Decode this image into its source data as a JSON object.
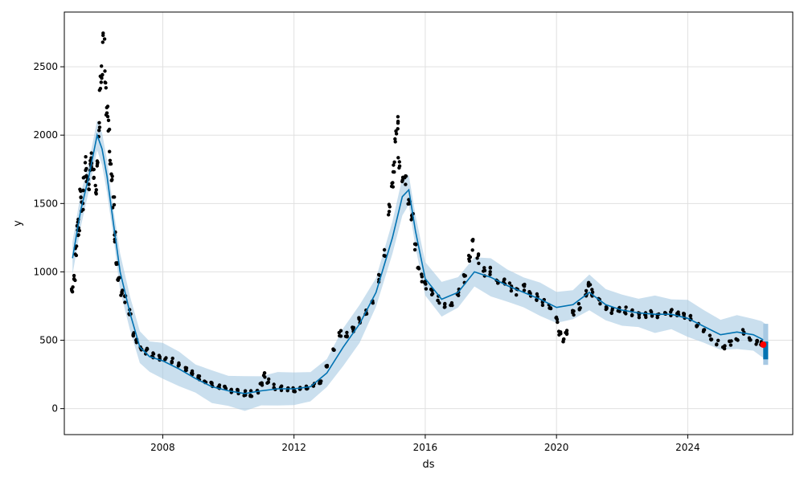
{
  "chart_data": {
    "type": "scatter",
    "xlabel": "ds",
    "ylabel": "y",
    "xlim": [
      2005.0,
      2027.2
    ],
    "ylim": [
      -190,
      2900
    ],
    "grid": true,
    "x_ticks": [
      {
        "value": 2008,
        "label": "2008"
      },
      {
        "value": 2012,
        "label": "2012"
      },
      {
        "value": 2016,
        "label": "2016"
      },
      {
        "value": 2020,
        "label": "2020"
      },
      {
        "value": 2024,
        "label": "2024"
      }
    ],
    "y_ticks": [
      {
        "value": 0,
        "label": "0"
      },
      {
        "value": 500,
        "label": "500"
      },
      {
        "value": 1000,
        "label": "1000"
      },
      {
        "value": 1500,
        "label": "1500"
      },
      {
        "value": 2000,
        "label": "2000"
      },
      {
        "value": 2500,
        "label": "2500"
      }
    ],
    "colors": {
      "observed": "#000000",
      "forecast": "#0072B2",
      "uncertainty": "#A7C9E3",
      "last_point": "#FF0000",
      "grid": "#E0E0E0"
    },
    "observed": [
      [
        2005.25,
        880
      ],
      [
        2005.3,
        950
      ],
      [
        2005.35,
        1150
      ],
      [
        2005.4,
        1350
      ],
      [
        2005.45,
        1280
      ],
      [
        2005.5,
        1550
      ],
      [
        2005.55,
        1480
      ],
      [
        2005.6,
        1650
      ],
      [
        2005.65,
        1800
      ],
      [
        2005.7,
        1720
      ],
      [
        2005.75,
        1650
      ],
      [
        2005.8,
        1760
      ],
      [
        2005.85,
        1820
      ],
      [
        2005.9,
        1700
      ],
      [
        2005.95,
        1580
      ],
      [
        2006.0,
        1750
      ],
      [
        2006.05,
        2050
      ],
      [
        2006.1,
        2350
      ],
      [
        2006.15,
        2500
      ],
      [
        2006.2,
        2700
      ],
      [
        2006.25,
        2400
      ],
      [
        2006.3,
        2200
      ],
      [
        2006.35,
        2100
      ],
      [
        2006.4,
        1850
      ],
      [
        2006.45,
        1700
      ],
      [
        2006.5,
        1500
      ],
      [
        2006.55,
        1250
      ],
      [
        2006.6,
        1050
      ],
      [
        2006.65,
        950
      ],
      [
        2006.75,
        850
      ],
      [
        2006.85,
        800
      ],
      [
        2007.0,
        700
      ],
      [
        2007.1,
        550
      ],
      [
        2007.2,
        500
      ],
      [
        2007.35,
        450
      ],
      [
        2007.5,
        420
      ],
      [
        2007.7,
        390
      ],
      [
        2007.9,
        370
      ],
      [
        2008.1,
        370
      ],
      [
        2008.3,
        350
      ],
      [
        2008.5,
        320
      ],
      [
        2008.7,
        290
      ],
      [
        2008.9,
        260
      ],
      [
        2009.1,
        230
      ],
      [
        2009.3,
        200
      ],
      [
        2009.5,
        180
      ],
      [
        2009.7,
        160
      ],
      [
        2009.9,
        150
      ],
      [
        2010.1,
        135
      ],
      [
        2010.3,
        120
      ],
      [
        2010.5,
        115
      ],
      [
        2010.7,
        110
      ],
      [
        2010.9,
        130
      ],
      [
        2011.0,
        180
      ],
      [
        2011.1,
        250
      ],
      [
        2011.2,
        200
      ],
      [
        2011.4,
        160
      ],
      [
        2011.6,
        145
      ],
      [
        2011.8,
        140
      ],
      [
        2012.0,
        140
      ],
      [
        2012.2,
        155
      ],
      [
        2012.4,
        160
      ],
      [
        2012.6,
        165
      ],
      [
        2012.8,
        200
      ],
      [
        2013.0,
        300
      ],
      [
        2013.2,
        420
      ],
      [
        2013.4,
        550
      ],
      [
        2013.6,
        540
      ],
      [
        2013.8,
        580
      ],
      [
        2014.0,
        650
      ],
      [
        2014.2,
        700
      ],
      [
        2014.4,
        800
      ],
      [
        2014.6,
        950
      ],
      [
        2014.75,
        1150
      ],
      [
        2014.9,
        1450
      ],
      [
        2015.0,
        1600
      ],
      [
        2015.05,
        1750
      ],
      [
        2015.1,
        2000
      ],
      [
        2015.15,
        2100
      ],
      [
        2015.2,
        1800
      ],
      [
        2015.3,
        1700
      ],
      [
        2015.4,
        1650
      ],
      [
        2015.5,
        1550
      ],
      [
        2015.6,
        1400
      ],
      [
        2015.7,
        1200
      ],
      [
        2015.8,
        1050
      ],
      [
        2015.9,
        950
      ],
      [
        2016.0,
        900
      ],
      [
        2016.2,
        850
      ],
      [
        2016.4,
        800
      ],
      [
        2016.6,
        760
      ],
      [
        2016.8,
        750
      ],
      [
        2017.0,
        850
      ],
      [
        2017.2,
        950
      ],
      [
        2017.35,
        1100
      ],
      [
        2017.45,
        1200
      ],
      [
        2017.6,
        1100
      ],
      [
        2017.8,
        1000
      ],
      [
        2018.0,
        1000
      ],
      [
        2018.2,
        950
      ],
      [
        2018.4,
        920
      ],
      [
        2018.6,
        890
      ],
      [
        2018.8,
        860
      ],
      [
        2019.0,
        880
      ],
      [
        2019.2,
        840
      ],
      [
        2019.4,
        820
      ],
      [
        2019.6,
        780
      ],
      [
        2019.8,
        750
      ],
      [
        2020.0,
        650
      ],
      [
        2020.1,
        550
      ],
      [
        2020.2,
        500
      ],
      [
        2020.3,
        560
      ],
      [
        2020.5,
        700
      ],
      [
        2020.7,
        750
      ],
      [
        2020.9,
        850
      ],
      [
        2021.0,
        920
      ],
      [
        2021.1,
        850
      ],
      [
        2021.3,
        780
      ],
      [
        2021.5,
        740
      ],
      [
        2021.7,
        720
      ],
      [
        2021.9,
        730
      ],
      [
        2022.1,
        720
      ],
      [
        2022.3,
        700
      ],
      [
        2022.5,
        690
      ],
      [
        2022.7,
        680
      ],
      [
        2022.9,
        700
      ],
      [
        2023.1,
        680
      ],
      [
        2023.3,
        690
      ],
      [
        2023.5,
        700
      ],
      [
        2023.7,
        690
      ],
      [
        2023.9,
        680
      ],
      [
        2024.1,
        660
      ],
      [
        2024.3,
        620
      ],
      [
        2024.5,
        570
      ],
      [
        2024.7,
        520
      ],
      [
        2024.9,
        480
      ],
      [
        2025.1,
        450
      ],
      [
        2025.3,
        480
      ],
      [
        2025.5,
        520
      ],
      [
        2025.7,
        560
      ],
      [
        2025.9,
        510
      ],
      [
        2026.1,
        490
      ],
      [
        2026.25,
        470
      ]
    ],
    "forecast": [
      [
        2005.25,
        1100
      ],
      [
        2005.5,
        1450
      ],
      [
        2005.75,
        1700
      ],
      [
        2006.0,
        2000
      ],
      [
        2006.15,
        1900
      ],
      [
        2006.3,
        1700
      ],
      [
        2006.5,
        1350
      ],
      [
        2006.7,
        1000
      ],
      [
        2007.0,
        700
      ],
      [
        2007.3,
        450
      ],
      [
        2007.6,
        380
      ],
      [
        2008.0,
        350
      ],
      [
        2008.5,
        290
      ],
      [
        2009.0,
        220
      ],
      [
        2009.5,
        160
      ],
      [
        2010.0,
        130
      ],
      [
        2010.5,
        110
      ],
      [
        2011.0,
        130
      ],
      [
        2011.5,
        145
      ],
      [
        2012.0,
        145
      ],
      [
        2012.5,
        160
      ],
      [
        2013.0,
        260
      ],
      [
        2013.5,
        450
      ],
      [
        2014.0,
        620
      ],
      [
        2014.5,
        850
      ],
      [
        2015.0,
        1250
      ],
      [
        2015.3,
        1550
      ],
      [
        2015.5,
        1600
      ],
      [
        2015.7,
        1300
      ],
      [
        2016.0,
        950
      ],
      [
        2016.5,
        800
      ],
      [
        2017.0,
        850
      ],
      [
        2017.5,
        1000
      ],
      [
        2018.0,
        960
      ],
      [
        2018.5,
        900
      ],
      [
        2019.0,
        850
      ],
      [
        2019.5,
        800
      ],
      [
        2020.0,
        740
      ],
      [
        2020.5,
        760
      ],
      [
        2021.0,
        850
      ],
      [
        2021.5,
        760
      ],
      [
        2022.0,
        720
      ],
      [
        2022.5,
        700
      ],
      [
        2023.0,
        690
      ],
      [
        2023.5,
        690
      ],
      [
        2024.0,
        660
      ],
      [
        2024.5,
        600
      ],
      [
        2025.0,
        540
      ],
      [
        2025.5,
        560
      ],
      [
        2026.0,
        540
      ],
      [
        2026.25,
        510
      ],
      [
        2026.45,
        480
      ]
    ],
    "last_point": [
      2026.3,
      468
    ],
    "forecast_band": {
      "x0": 2026.3,
      "x1": 2026.45,
      "lower": 320,
      "upper": 620
    }
  }
}
